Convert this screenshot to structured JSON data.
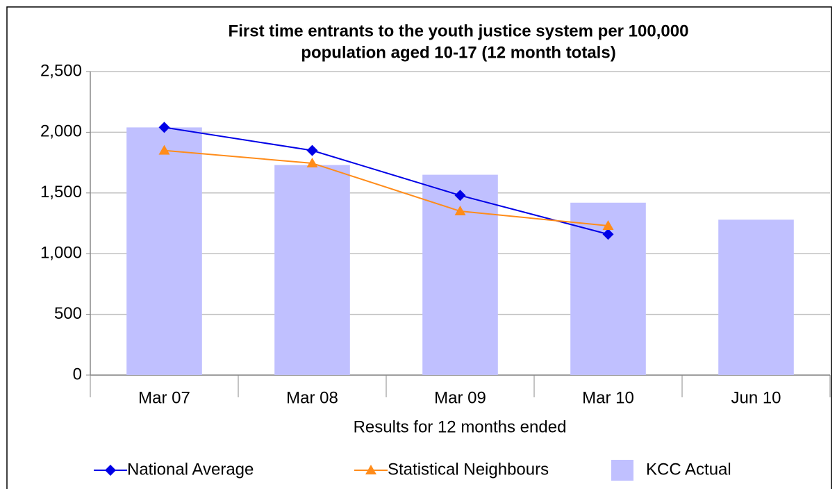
{
  "chart_data": {
    "type": "bar",
    "title": [
      "First time entrants to the youth justice system per 100,000",
      "population aged 10-17 (12 month totals)"
    ],
    "x_label": "Results for 12 months ended",
    "categories": [
      "Mar 07",
      "Mar 08",
      "Mar 09",
      "Mar 10",
      "Jun 10"
    ],
    "series": [
      {
        "name": "National Average",
        "type": "line",
        "marker": "diamond",
        "color": "#0000e6",
        "values": [
          2040,
          1850,
          1480,
          1160,
          null
        ]
      },
      {
        "name": "Statistical Neighbours",
        "type": "line",
        "marker": "triangle",
        "color": "#ff8c1a",
        "values": [
          1850,
          1745,
          1350,
          1230,
          null
        ]
      },
      {
        "name": "KCC Actual",
        "type": "bar",
        "color": "#c0c0ff",
        "values": [
          2040,
          1730,
          1650,
          1420,
          1280
        ]
      }
    ],
    "ylim": [
      0,
      2500
    ],
    "yticks": [
      0,
      500,
      {
        "value": 1000,
        "label": "1,000"
      },
      {
        "value": 1500,
        "label": "1,500"
      },
      {
        "value": 2000,
        "label": "2,000"
      },
      {
        "value": 2500,
        "label": "2,500"
      }
    ],
    "grid": true,
    "legend": "bottom"
  }
}
